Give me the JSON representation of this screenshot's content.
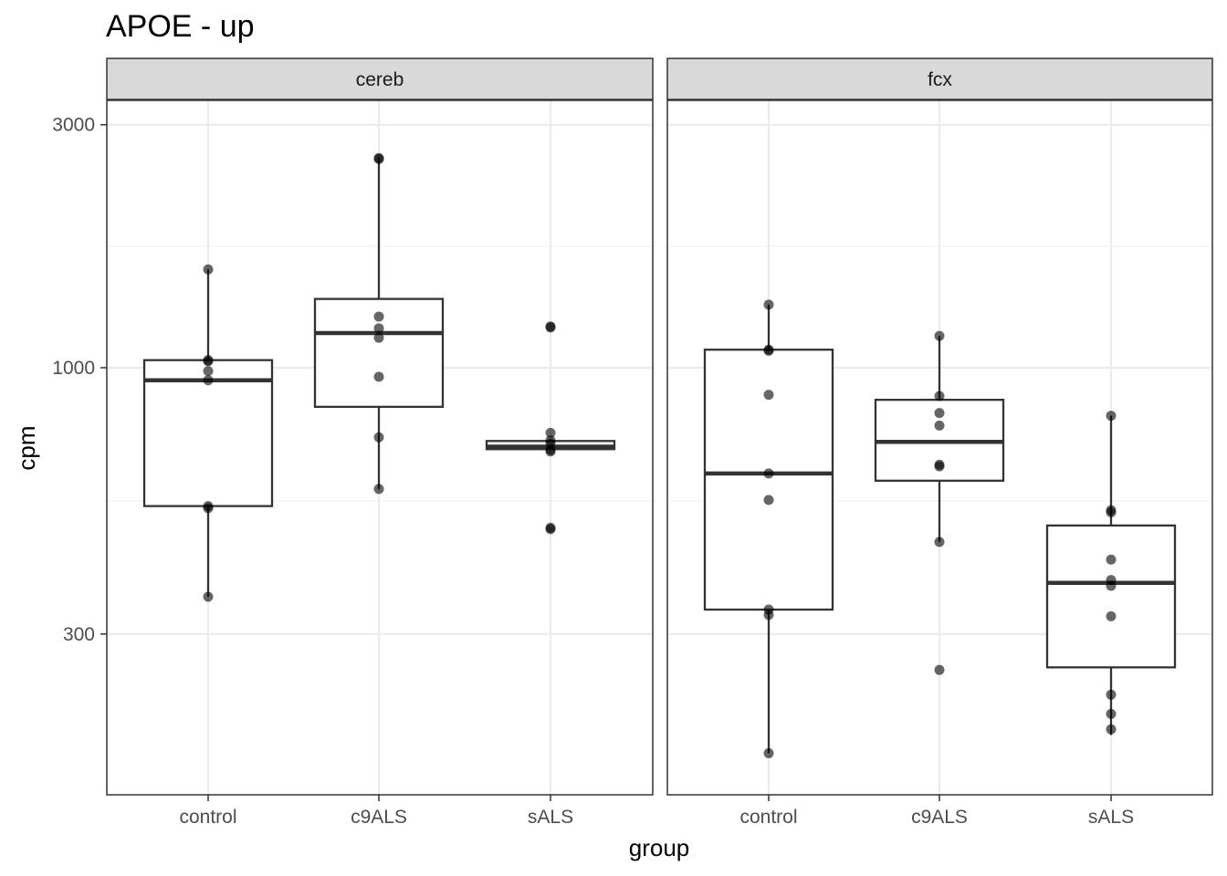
{
  "chart_data": {
    "type": "boxplot",
    "title": "APOE - up",
    "xlabel": "group",
    "ylabel": "cpm",
    "y_scale": "log10",
    "ylim": [
      145,
      3350
    ],
    "y_ticks": [
      300,
      1000,
      3000
    ],
    "y_tick_labels": [
      "300",
      "1000",
      "3000"
    ],
    "grid": true,
    "categories": [
      "control",
      "c9ALS",
      "sALS"
    ],
    "panels": [
      {
        "name": "cereb",
        "groups": [
          {
            "category": "control",
            "box": {
              "lower_whisker": 355,
              "q1": 535,
              "median": 945,
              "q3": 1035,
              "upper_whisker": 1560
            },
            "points": [
              1560,
              1035,
              1030,
              985,
              945,
              535,
              530,
              355
            ]
          },
          {
            "category": "c9ALS",
            "box": {
              "lower_whisker": 578,
              "q1": 838,
              "median": 1170,
              "q3": 1365,
              "upper_whisker": 2580
            },
            "points": [
              2580,
              2570,
              1260,
              1195,
              1145,
              960,
              730,
              578
            ]
          },
          {
            "category": "sALS",
            "box": {
              "lower_whisker": 692,
              "q1": 692,
              "median": 700,
              "q3": 718,
              "upper_whisker": 718
            },
            "points": [
              1205,
              1200,
              745,
              720,
              710,
              690,
              685,
              485,
              482
            ]
          }
        ]
      },
      {
        "name": "fcx",
        "groups": [
          {
            "category": "control",
            "box": {
              "lower_whisker": 175,
              "q1": 335,
              "median": 620,
              "q3": 1085,
              "upper_whisker": 1330
            },
            "points": [
              1330,
              1085,
              1080,
              885,
              620,
              550,
              335,
              327,
              175
            ]
          },
          {
            "category": "c9ALS",
            "box": {
              "lower_whisker": 455,
              "q1": 600,
              "median": 715,
              "q3": 865,
              "upper_whisker": 1155
            },
            "points": [
              1155,
              880,
              815,
              770,
              645,
              640,
              455,
              255
            ]
          },
          {
            "category": "sALS",
            "box": {
              "lower_whisker": 190,
              "q1": 258,
              "median": 378,
              "q3": 490,
              "upper_whisker": 805
            },
            "points": [
              805,
              525,
              520,
              420,
              383,
              373,
              325,
              228,
              209,
              195
            ]
          }
        ]
      }
    ]
  }
}
